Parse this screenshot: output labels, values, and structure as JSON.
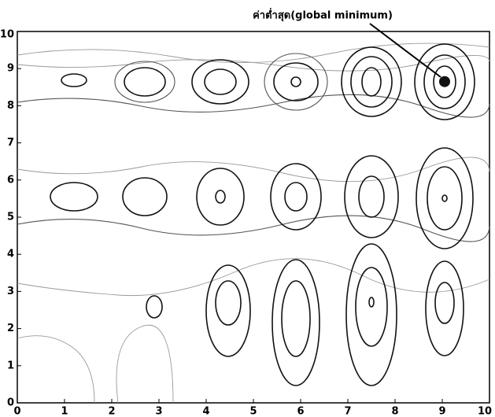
{
  "chart_data": {
    "type": "contour",
    "annotation": {
      "text": "ค่าต่ำสุด(global minimum)",
      "x": 9.05,
      "y": 8.65
    },
    "xlim": [
      0,
      10
    ],
    "ylim": [
      0,
      10
    ],
    "xticks": [
      0,
      1,
      2,
      3,
      4,
      5,
      6,
      7,
      8,
      9,
      10
    ],
    "yticks": [
      0,
      1,
      2,
      3,
      4,
      5,
      6,
      7,
      8,
      9,
      10
    ]
  }
}
